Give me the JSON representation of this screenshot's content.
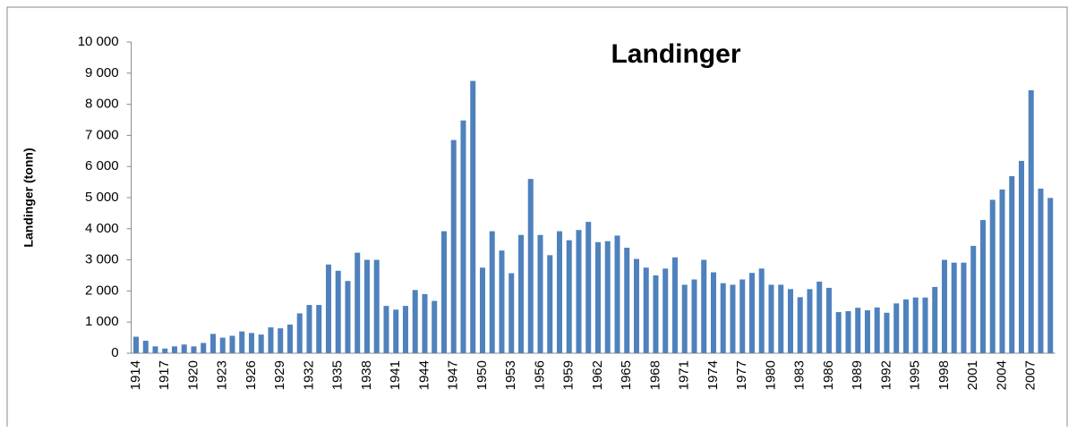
{
  "chart_data": {
    "type": "bar",
    "title": "Landinger",
    "y_label": "Landinger (tonn)",
    "categories": [
      "1914",
      null,
      null,
      "1917",
      null,
      null,
      "1920",
      null,
      null,
      "1923",
      null,
      null,
      "1926",
      null,
      null,
      "1929",
      null,
      null,
      "1932",
      null,
      null,
      "1935",
      null,
      null,
      "1938",
      null,
      null,
      "1941",
      null,
      null,
      "1944",
      null,
      null,
      "1947",
      null,
      null,
      "1950",
      null,
      null,
      "1953",
      null,
      null,
      "1956",
      null,
      null,
      "1959",
      null,
      null,
      "1962",
      null,
      null,
      "1965",
      null,
      null,
      "1968",
      null,
      null,
      "1971",
      null,
      null,
      "1974",
      null,
      null,
      "1977",
      null,
      null,
      "1980",
      null,
      null,
      "1983",
      null,
      null,
      "1986",
      null,
      null,
      "1989",
      null,
      null,
      "1992",
      null,
      null,
      "1995",
      null,
      null,
      "1998",
      null,
      null,
      "2001",
      null,
      null,
      "2004",
      null,
      null,
      "2007",
      null,
      null
    ],
    "values": [
      530,
      400,
      220,
      150,
      220,
      280,
      220,
      330,
      620,
      500,
      560,
      700,
      650,
      600,
      830,
      800,
      920,
      1280,
      1550,
      1550,
      2850,
      2650,
      2320,
      3230,
      3000,
      3000,
      1520,
      1400,
      1520,
      2030,
      1900,
      1680,
      3920,
      6850,
      7480,
      8750,
      2750,
      3920,
      3300,
      2570,
      3800,
      5600,
      3800,
      3150,
      3920,
      3630,
      3960,
      4220,
      3570,
      3600,
      3780,
      3390,
      3030,
      2750,
      2500,
      2720,
      3080,
      2200,
      2370,
      3000,
      2600,
      2250,
      2200,
      2370,
      2580,
      2720,
      2200,
      2200,
      2060,
      1800,
      2060,
      2300,
      2100,
      1320,
      1350,
      1460,
      1380,
      1470,
      1300,
      1600,
      1730,
      1790,
      1790,
      2130,
      3000,
      2910,
      2910,
      3450,
      4280,
      4930,
      5260,
      5690,
      6180,
      8450,
      5290,
      4990
    ],
    "color": "#4f81bd",
    "ylim": [
      0,
      10000
    ],
    "yticks": [
      0,
      {
        "value": 1000,
        "label": "1 000"
      },
      {
        "value": 2000,
        "label": "2 000"
      },
      {
        "value": 3000,
        "label": "3 000"
      },
      {
        "value": 4000,
        "label": "4 000"
      },
      {
        "value": 5000,
        "label": "5 000"
      },
      {
        "value": 6000,
        "label": "6 000"
      },
      {
        "value": 7000,
        "label": "7 000"
      },
      {
        "value": 8000,
        "label": "8 000"
      },
      {
        "value": 9000,
        "label": "9 000"
      },
      {
        "value": 10000,
        "label": "10 000"
      }
    ],
    "grid": false
  }
}
